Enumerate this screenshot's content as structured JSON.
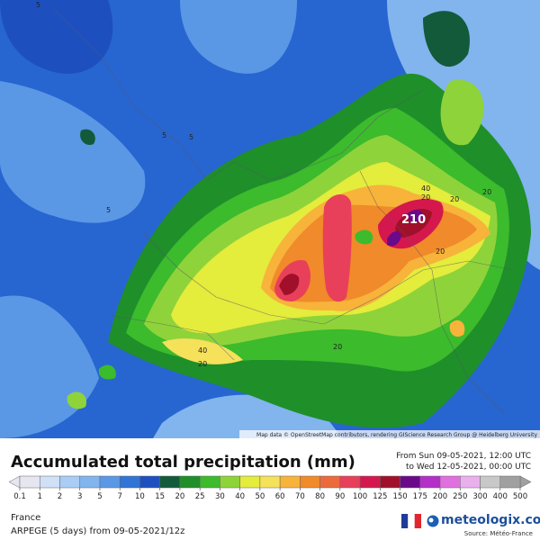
{
  "map": {
    "contour_labels": [
      "5",
      "5",
      "5",
      "5",
      "20",
      "20",
      "20",
      "40",
      "20",
      "40",
      "20",
      "20",
      "210"
    ],
    "attribution": "Map data © OpenStreetMap contributors, rendering GIScience Research Group @ Heidelberg University"
  },
  "header": {
    "title": "Accumulated total precipitation (mm)",
    "from": "From Sun 09-05-2021, 12:00 UTC",
    "to": "to Wed 12-05-2021, 00:00 UTC"
  },
  "legend": {
    "ticks": [
      0.1,
      1,
      2,
      3,
      5,
      7,
      10,
      15,
      20,
      25,
      30,
      40,
      50,
      60,
      70,
      80,
      90,
      100,
      125,
      150,
      175,
      200,
      250,
      300,
      400,
      500
    ],
    "colors": [
      "#e6e6f0",
      "#cfe0f7",
      "#a9cdf4",
      "#82b4ee",
      "#5a98e6",
      "#2f74d6",
      "#1e4fbf",
      "#135a3a",
      "#1f8f2a",
      "#3cbb2c",
      "#8fd33a",
      "#e4ec3c",
      "#f5e15a",
      "#f7b33a",
      "#f08a2a",
      "#ec6a3c",
      "#e8405a",
      "#d4184e",
      "#a0102a",
      "#6a0a8a",
      "#b42fc8",
      "#e070e0",
      "#eab0ee",
      "#c8c8c8",
      "#a0a0a0"
    ]
  },
  "footer": {
    "region": "France",
    "model": "ARPEGE (5 days) from 09-05-2021/12z",
    "brand": "meteologix.com",
    "source": "Source: Météo-France"
  }
}
